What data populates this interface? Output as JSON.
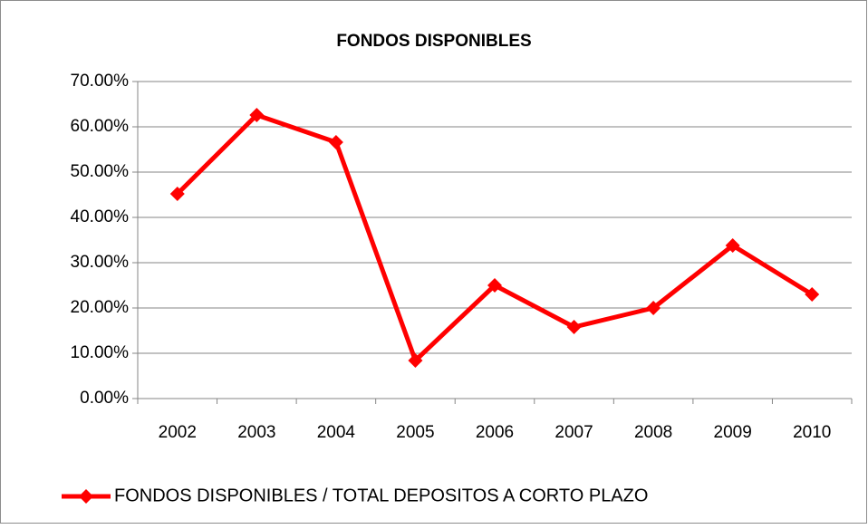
{
  "chart_data": {
    "type": "line",
    "title": "FONDOS DISPONIBLES",
    "categories": [
      "2002",
      "2003",
      "2004",
      "2005",
      "2006",
      "2007",
      "2008",
      "2009",
      "2010"
    ],
    "series": [
      {
        "name": "FONDOS DISPONIBLES / TOTAL DEPOSITOS A CORTO PLAZO",
        "color": "#ff0000",
        "values": [
          45.2,
          62.6,
          56.6,
          8.4,
          25.0,
          15.8,
          20.0,
          33.8,
          23.0
        ]
      }
    ],
    "ylim": [
      0,
      70
    ],
    "yticks": [
      {
        "value": 0,
        "label": "0.00%"
      },
      {
        "value": 10,
        "label": "10.00%"
      },
      {
        "value": 20,
        "label": "20.00%"
      },
      {
        "value": 30,
        "label": "30.00%"
      },
      {
        "value": 40,
        "label": "40.00%"
      },
      {
        "value": 50,
        "label": "50.00%"
      },
      {
        "value": 60,
        "label": "60.00%"
      },
      {
        "value": 70,
        "label": "70.00%"
      }
    ],
    "grid": true,
    "legend": "bottom"
  }
}
